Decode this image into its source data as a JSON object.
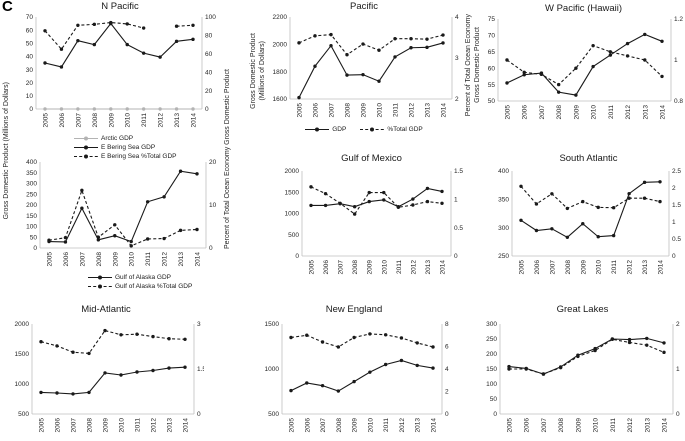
{
  "figure_label": "C",
  "years": [
    "2005",
    "2006",
    "2007",
    "2008",
    "2009",
    "2010",
    "2011",
    "2012",
    "2013",
    "2014"
  ],
  "axis_labels": {
    "gdp_millions": "Gross Domestic Product (Millions of Dollars)",
    "pct_total": "Percent of Total Ocean Economy Gross Domestic Product",
    "gdp_line1": "Gross Domestic Product",
    "gdp_line2": "(Millions of Dollars)",
    "pct_line1": "Percent of Total Ocean Economy",
    "pct_line2": "Gross Domestic Product"
  },
  "colors": {
    "line": "#1a1a1a",
    "arctic": "#b3b3b3",
    "axis": "#bfbfbf"
  },
  "chart_data": [
    {
      "type": "line",
      "title": "N Pacific",
      "left_axis": {
        "min": 0,
        "max": 70,
        "ticks": [
          0,
          10,
          20,
          30,
          40,
          50,
          60,
          70
        ]
      },
      "right_axis": {
        "min": 0,
        "max": 100,
        "ticks": [
          0,
          20,
          40,
          60,
          80,
          100
        ]
      },
      "series": [
        {
          "name": "Arctic GDP",
          "axis": "left",
          "style": "solid",
          "color": "#b3b3b3",
          "values": [
            0,
            0,
            0,
            0,
            0,
            0,
            0,
            0,
            0,
            0
          ]
        },
        {
          "name": "E Bering Sea GDP",
          "axis": "left",
          "style": "solid",
          "color": "#1a1a1a",
          "values": [
            35,
            32,
            52,
            49,
            65,
            49,
            42.5,
            39.5,
            51.5,
            53
          ]
        },
        {
          "name": "E Bering Sea %Total GDP",
          "axis": "right",
          "style": "dashed",
          "color": "#1a1a1a",
          "values": [
            85,
            65,
            91,
            92,
            94,
            92.5,
            88,
            null,
            90,
            91
          ]
        }
      ]
    },
    {
      "type": "line",
      "title": "",
      "left_axis": {
        "min": 0,
        "max": 400,
        "ticks": [
          0,
          50,
          100,
          150,
          200,
          250,
          300,
          350,
          400
        ]
      },
      "right_axis": {
        "min": 0,
        "max": 20,
        "ticks": [
          0,
          10,
          20
        ]
      },
      "series": [
        {
          "name": "Gulf of Alaska GDP",
          "axis": "left",
          "style": "solid",
          "color": "#1a1a1a",
          "values": [
            30,
            28,
            185,
            38,
            57,
            30,
            215,
            238,
            357,
            345
          ]
        },
        {
          "name": "Gulf of Alaska %Total GDP",
          "axis": "right",
          "style": "dashed",
          "color": "#1a1a1a",
          "values": [
            1.8,
            2.4,
            13.4,
            2.5,
            5.4,
            0.5,
            2.1,
            2.2,
            4.1,
            4.3
          ]
        }
      ]
    },
    {
      "type": "line",
      "title": "Pacific",
      "left_axis": {
        "min": 1600,
        "max": 2200,
        "ticks": [
          1600,
          1800,
          2000,
          2200
        ]
      },
      "right_axis": {
        "min": 2,
        "max": 4,
        "ticks": [
          2,
          3,
          4
        ]
      },
      "series": [
        {
          "name": "GDP",
          "axis": "left",
          "style": "solid",
          "color": "#1a1a1a",
          "values": [
            1610,
            1840,
            1990,
            1775,
            1778,
            1730,
            1908,
            1975,
            1978,
            2010
          ]
        },
        {
          "name": "%Total GDP",
          "axis": "right",
          "style": "dashed",
          "color": "#1a1a1a",
          "values": [
            3.37,
            3.54,
            3.57,
            3.08,
            3.34,
            3.19,
            3.47,
            3.47,
            3.46,
            3.56
          ]
        }
      ]
    },
    {
      "type": "line",
      "title": "W Pacific (Hawaii)",
      "left_axis": {
        "min": 50,
        "max": 75,
        "ticks": [
          50,
          55,
          60,
          65,
          70,
          75
        ]
      },
      "right_axis": {
        "min": 0.8,
        "max": 1.2,
        "ticks": [
          0.8,
          1,
          1.2
        ]
      },
      "series": [
        {
          "name": "GDP",
          "axis": "left",
          "style": "solid",
          "color": "#1a1a1a",
          "values": [
            55.5,
            58,
            58.5,
            52.7,
            51.8,
            60.5,
            64,
            67.5,
            70.3,
            68.2
          ]
        },
        {
          "name": "%Total GDP",
          "axis": "right",
          "style": "dashed",
          "color": "#1a1a1a",
          "values": [
            1.0,
            0.94,
            0.93,
            0.88,
            0.96,
            1.07,
            1.04,
            1.02,
            1.0,
            0.92
          ]
        }
      ]
    },
    {
      "type": "line",
      "title": "Gulf of Mexico",
      "left_axis": {
        "min": 0,
        "max": 2000,
        "ticks": [
          0,
          500,
          1000,
          1500,
          2000
        ]
      },
      "right_axis": {
        "min": 0,
        "max": 1.5,
        "ticks": [
          0,
          0.5,
          1,
          1.5
        ]
      },
      "series": [
        {
          "name": "GDP",
          "axis": "left",
          "style": "solid",
          "color": "#1a1a1a",
          "values": [
            1190,
            1190,
            1230,
            1160,
            1280,
            1320,
            1160,
            1340,
            1590,
            1520
          ]
        },
        {
          "name": "%Total GDP",
          "axis": "right",
          "style": "dashed",
          "color": "#1a1a1a",
          "values": [
            1.22,
            1.1,
            0.93,
            0.74,
            1.12,
            1.12,
            0.86,
            0.9,
            0.96,
            0.93
          ]
        }
      ]
    },
    {
      "type": "line",
      "title": "South Atlantic",
      "left_axis": {
        "min": 250,
        "max": 400,
        "ticks": [
          250,
          300,
          350,
          400
        ]
      },
      "right_axis": {
        "min": 0,
        "max": 2.5,
        "ticks": [
          0,
          0.5,
          1,
          1.5,
          2,
          2.5
        ]
      },
      "series": [
        {
          "name": "GDP",
          "axis": "left",
          "style": "solid",
          "color": "#1a1a1a",
          "values": [
            313,
            295,
            298,
            283,
            307,
            284,
            286,
            360,
            380,
            381
          ]
        },
        {
          "name": "%Total GDP",
          "axis": "right",
          "style": "dashed",
          "color": "#1a1a1a",
          "values": [
            2.05,
            1.53,
            1.83,
            1.4,
            1.6,
            1.43,
            1.42,
            1.7,
            1.7,
            1.6
          ]
        }
      ]
    },
    {
      "type": "line",
      "title": "Mid-Atlantic",
      "left_axis": {
        "min": 500,
        "max": 2000,
        "ticks": [
          500,
          1000,
          1500,
          2000
        ]
      },
      "right_axis": {
        "min": 0,
        "max": 3,
        "ticks": [
          0,
          1.5,
          3
        ]
      },
      "series": [
        {
          "name": "GDP",
          "axis": "left",
          "style": "solid",
          "color": "#1a1a1a",
          "values": [
            860,
            850,
            835,
            860,
            1185,
            1150,
            1200,
            1225,
            1265,
            1280
          ]
        },
        {
          "name": "%Total GDP",
          "axis": "right",
          "style": "dashed",
          "color": "#1a1a1a",
          "values": [
            2.41,
            2.27,
            2.06,
            2.02,
            2.78,
            2.64,
            2.66,
            2.58,
            2.51,
            2.49
          ]
        }
      ]
    },
    {
      "type": "line",
      "title": "New England",
      "left_axis": {
        "min": 500,
        "max": 1500,
        "ticks": [
          500,
          1000,
          1500
        ]
      },
      "right_axis": {
        "min": 0,
        "max": 8,
        "ticks": [
          0,
          2,
          4,
          6,
          8
        ]
      },
      "series": [
        {
          "name": "GDP",
          "axis": "left",
          "style": "solid",
          "color": "#1a1a1a",
          "values": [
            760,
            845,
            815,
            755,
            860,
            965,
            1050,
            1095,
            1040,
            1010
          ]
        },
        {
          "name": "%Total GDP",
          "axis": "right",
          "style": "dashed",
          "color": "#1a1a1a",
          "values": [
            6.8,
            7.0,
            6.4,
            5.96,
            6.8,
            7.12,
            7.04,
            6.76,
            6.32,
            5.96
          ]
        }
      ]
    },
    {
      "type": "line",
      "title": "Great Lakes",
      "left_axis": {
        "min": 0,
        "max": 300,
        "ticks": [
          0,
          50,
          100,
          150,
          200,
          250,
          300
        ]
      },
      "right_axis": {
        "min": 0,
        "max": 2,
        "ticks": [
          0,
          1,
          2
        ]
      },
      "series": [
        {
          "name": "GDP",
          "axis": "left",
          "style": "solid",
          "color": "#1a1a1a",
          "values": [
            158,
            152,
            133,
            157,
            196,
            218,
            250,
            248,
            252,
            237
          ]
        },
        {
          "name": "%Total GDP",
          "axis": "right",
          "style": "dashed",
          "color": "#1a1a1a",
          "values": [
            1.0,
            1.0,
            0.89,
            1.03,
            1.28,
            1.41,
            1.66,
            1.59,
            1.53,
            1.37
          ]
        }
      ]
    }
  ]
}
